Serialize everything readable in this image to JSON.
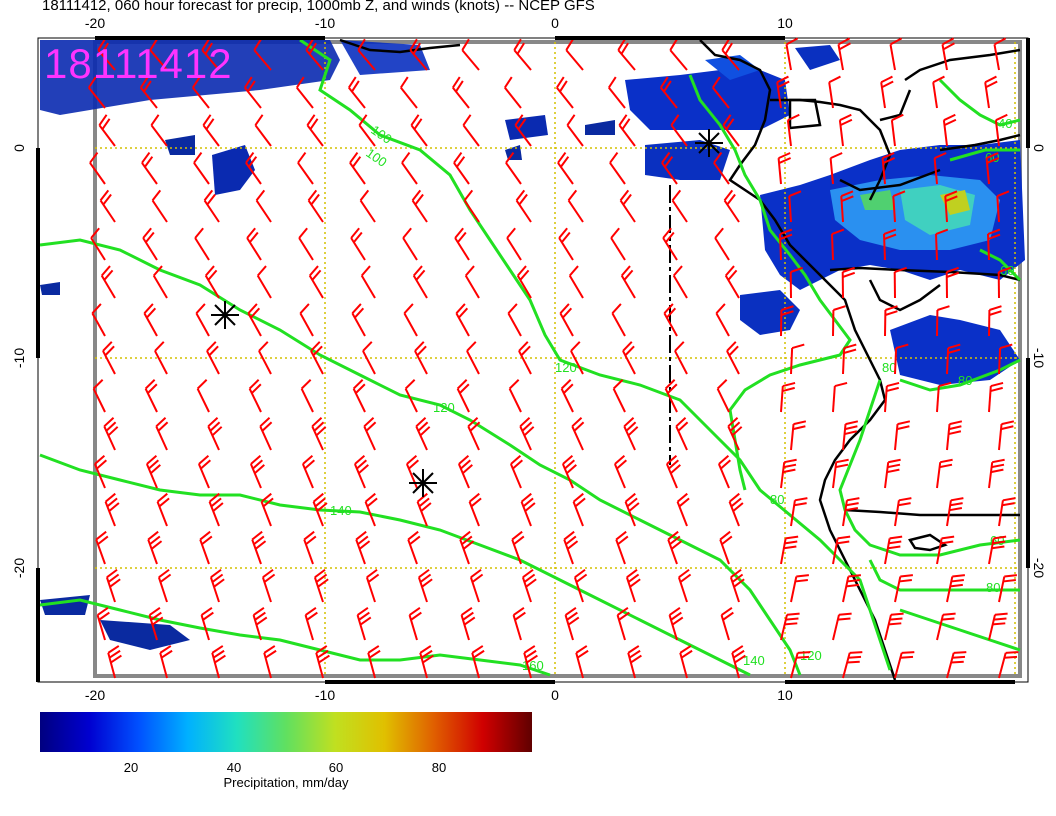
{
  "title": "18111412, 060 hour forecast for precip, 1000mb Z, and winds (knots) -- NCEP GFS",
  "stamp": "18111412",
  "axes": {
    "x_ticks": [
      "-20",
      "-10",
      "0",
      "10"
    ],
    "y_ticks": [
      "0",
      "-10",
      "-20"
    ]
  },
  "contour_labels": [
    "100",
    "100",
    "120",
    "140",
    "160",
    "80",
    "60",
    "80",
    "120",
    "140",
    "40",
    "60",
    "80",
    "60",
    "80",
    "120"
  ],
  "colorbar": {
    "label": "Precipitation, mm/day",
    "ticks": [
      "20",
      "40",
      "60",
      "80"
    ],
    "colors": [
      "#000080",
      "#0000d0",
      "#0050ff",
      "#00b0ff",
      "#20e0c0",
      "#60e060",
      "#c0e020",
      "#e0c000",
      "#e06000",
      "#d00000",
      "#600000"
    ]
  },
  "colors": {
    "contour": "#22e022",
    "barb": "#ff0000",
    "grid": "#d4c000",
    "coast": "#000000"
  }
}
